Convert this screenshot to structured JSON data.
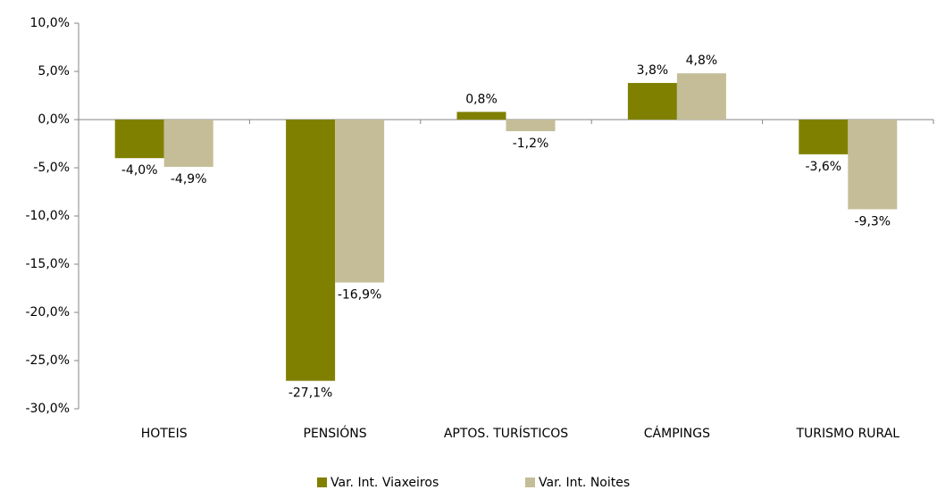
{
  "chart_data": {
    "type": "bar",
    "categories": [
      "HOTEIS",
      "PENSIÓNS",
      "APTOS. TURÍSTICOS",
      "CÁMPINGS",
      "TURISMO RURAL"
    ],
    "series": [
      {
        "name": "Var. Int. Viaxeiros",
        "color": "#808000",
        "values": [
          -4.0,
          -27.1,
          0.8,
          3.8,
          -3.6
        ],
        "value_labels": [
          "-4,0%",
          "-27,1%",
          "0,8%",
          "3,8%",
          "-3,6%"
        ]
      },
      {
        "name": "Var. Int. Noites",
        "color": "#c4bd97",
        "values": [
          -4.9,
          -16.9,
          -1.2,
          4.8,
          -9.3
        ],
        "value_labels": [
          "-4,9%",
          "-16,9%",
          "-1,2%",
          "4,8%",
          "-9,3%"
        ]
      }
    ],
    "ylim": [
      -30,
      10
    ],
    "yticks": [
      {
        "value": -30,
        "label": "-30,0%"
      },
      {
        "value": -25,
        "label": "-25,0%"
      },
      {
        "value": -20,
        "label": "-20,0%"
      },
      {
        "value": -15,
        "label": "-15,0%"
      },
      {
        "value": -10,
        "label": "-10,0%"
      },
      {
        "value": -5,
        "label": "-5,0%"
      },
      {
        "value": 0,
        "label": "0,0%"
      },
      {
        "value": 5,
        "label": "5,0%"
      },
      {
        "value": 10,
        "label": "10,0%"
      }
    ],
    "grid": false,
    "legend": "bottom"
  }
}
